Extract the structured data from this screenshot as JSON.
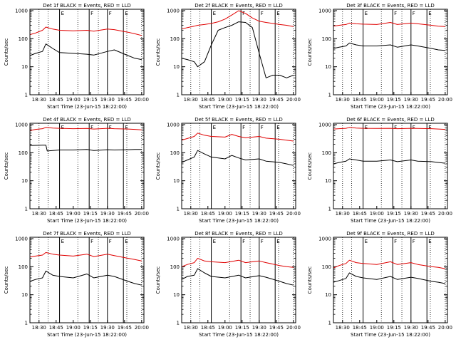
{
  "colors": {
    "events": "#000000",
    "lld": "#e00000",
    "axes": "#000000",
    "background": "#ffffff"
  },
  "shared": {
    "ylabel": "Counts/sec",
    "xlabel": "Start Time (23-Jun-15 18:22:00)",
    "xticks": [
      "18:30",
      "18:45",
      "19:00",
      "19:15",
      "19:30",
      "19:45",
      "20:00"
    ],
    "yticks": [
      "1",
      "10",
      "100",
      "1000"
    ],
    "solid_markers": [
      18.8,
      19.233,
      19.5,
      19.733
    ],
    "solid_labels": [
      "E",
      "F",
      "F",
      "E"
    ],
    "dotted_markers": [
      18.5,
      18.633,
      19.067,
      19.367,
      19.783,
      20.0
    ],
    "xlim": [
      18.367,
      20.033
    ],
    "ylim_log10": [
      0,
      3.05
    ]
  },
  "chart_data": [
    {
      "type": "line",
      "title": "Det 1f BLACK = Events, RED = LLD",
      "series": [
        {
          "name": "Events",
          "color": "#000000",
          "x": [
            18.367,
            18.45,
            18.55,
            18.6,
            18.7,
            18.8,
            19.0,
            19.2,
            19.3,
            19.5,
            19.6,
            19.8,
            19.9,
            20.0
          ],
          "values": [
            25,
            30,
            35,
            65,
            45,
            32,
            30,
            28,
            26,
            35,
            40,
            25,
            20,
            18
          ]
        },
        {
          "name": "LLD",
          "color": "#e00000",
          "x": [
            18.367,
            18.45,
            18.55,
            18.6,
            18.7,
            18.8,
            19.0,
            19.2,
            19.3,
            19.5,
            19.6,
            19.8,
            19.9,
            20.0
          ],
          "values": [
            140,
            160,
            200,
            260,
            220,
            200,
            190,
            200,
            185,
            220,
            210,
            170,
            150,
            130
          ]
        }
      ]
    },
    {
      "type": "line",
      "title": "Det 2f BLACK = Events, RED = LLD",
      "series": [
        {
          "name": "Events",
          "color": "#000000",
          "x": [
            18.367,
            18.45,
            18.55,
            18.6,
            18.7,
            18.8,
            18.9,
            19.0,
            19.1,
            19.2,
            19.3,
            19.4,
            19.5,
            19.6,
            19.7,
            19.8,
            19.9,
            20.0
          ],
          "values": [
            20,
            18,
            15,
            10,
            15,
            60,
            200,
            250,
            300,
            400,
            380,
            250,
            30,
            4,
            5,
            5,
            4,
            5
          ]
        },
        {
          "name": "LLD",
          "color": "#e00000",
          "x": [
            18.367,
            18.45,
            18.55,
            18.6,
            18.7,
            18.8,
            18.9,
            19.0,
            19.1,
            19.2,
            19.3,
            19.4,
            19.5,
            19.6,
            19.7,
            19.8,
            19.9,
            20.0
          ],
          "values": [
            220,
            250,
            280,
            300,
            320,
            350,
            400,
            500,
            700,
            1000,
            800,
            550,
            420,
            380,
            350,
            320,
            300,
            270
          ]
        }
      ]
    },
    {
      "type": "line",
      "title": "Det 3f BLACK = Events, RED = LLD",
      "series": [
        {
          "name": "Events",
          "color": "#000000",
          "x": [
            18.367,
            18.45,
            18.55,
            18.6,
            18.7,
            18.8,
            19.0,
            19.2,
            19.3,
            19.5,
            19.6,
            19.8,
            19.9,
            20.0
          ],
          "values": [
            45,
            50,
            55,
            70,
            60,
            55,
            55,
            60,
            50,
            60,
            55,
            45,
            40,
            38
          ]
        },
        {
          "name": "LLD",
          "color": "#e00000",
          "x": [
            18.367,
            18.45,
            18.55,
            18.6,
            18.7,
            18.8,
            19.0,
            19.2,
            19.3,
            19.5,
            19.6,
            19.8,
            19.9,
            20.0
          ],
          "values": [
            280,
            300,
            320,
            360,
            340,
            330,
            320,
            380,
            320,
            360,
            340,
            300,
            280,
            270
          ]
        }
      ]
    },
    {
      "type": "line",
      "title": "Det 4f BLACK = Events, RED = LLD",
      "series": [
        {
          "name": "Events",
          "color": "#000000",
          "x": [
            18.367,
            18.55,
            18.6,
            18.62,
            18.7,
            18.8,
            19.0,
            19.2,
            19.3,
            19.5,
            19.6,
            19.8,
            19.9,
            20.0
          ],
          "values": [
            180,
            185,
            185,
            115,
            120,
            125,
            125,
            130,
            120,
            128,
            125,
            128,
            130,
            130
          ]
        },
        {
          "name": "LLD",
          "color": "#e00000",
          "x": [
            18.367,
            18.45,
            18.55,
            18.6,
            18.7,
            18.8,
            19.0,
            19.2,
            19.3,
            19.5,
            19.6,
            19.8,
            19.9,
            20.0
          ],
          "values": [
            620,
            680,
            720,
            800,
            760,
            740,
            720,
            730,
            700,
            740,
            720,
            700,
            680,
            650
          ]
        }
      ]
    },
    {
      "type": "line",
      "title": "Det 5f BLACK = Events, RED = LLD",
      "series": [
        {
          "name": "Events",
          "color": "#000000",
          "x": [
            18.367,
            18.45,
            18.55,
            18.6,
            18.7,
            18.8,
            19.0,
            19.1,
            19.2,
            19.3,
            19.5,
            19.6,
            19.8,
            19.9,
            20.0
          ],
          "values": [
            45,
            55,
            70,
            120,
            90,
            70,
            60,
            80,
            65,
            55,
            60,
            50,
            45,
            40,
            35
          ]
        },
        {
          "name": "LLD",
          "color": "#e00000",
          "x": [
            18.367,
            18.45,
            18.55,
            18.6,
            18.7,
            18.8,
            19.0,
            19.1,
            19.2,
            19.3,
            19.5,
            19.6,
            19.8,
            19.9,
            20.0
          ],
          "values": [
            280,
            320,
            380,
            500,
            420,
            380,
            360,
            450,
            380,
            340,
            380,
            330,
            300,
            280,
            260
          ]
        }
      ]
    },
    {
      "type": "line",
      "title": "Det 6f BLACK = Events, RED = LLD",
      "series": [
        {
          "name": "Events",
          "color": "#000000",
          "x": [
            18.367,
            18.45,
            18.55,
            18.6,
            18.7,
            18.8,
            19.0,
            19.2,
            19.3,
            19.5,
            19.6,
            19.8,
            19.9,
            20.0
          ],
          "values": [
            40,
            45,
            50,
            60,
            55,
            50,
            50,
            55,
            48,
            55,
            50,
            48,
            45,
            42
          ]
        },
        {
          "name": "LLD",
          "color": "#e00000",
          "x": [
            18.367,
            18.45,
            18.55,
            18.6,
            18.7,
            18.8,
            19.0,
            19.2,
            19.3,
            19.5,
            19.6,
            19.8,
            19.9,
            20.0
          ],
          "values": [
            700,
            720,
            740,
            800,
            760,
            740,
            730,
            740,
            720,
            740,
            730,
            720,
            700,
            680
          ]
        }
      ]
    },
    {
      "type": "line",
      "title": "Det 7f BLACK = Events, RED = LLD",
      "series": [
        {
          "name": "Events",
          "color": "#000000",
          "x": [
            18.367,
            18.45,
            18.55,
            18.6,
            18.7,
            18.8,
            19.0,
            19.2,
            19.3,
            19.5,
            19.6,
            19.8,
            19.9,
            20.0
          ],
          "values": [
            30,
            35,
            40,
            70,
            50,
            45,
            40,
            55,
            40,
            50,
            45,
            30,
            25,
            22
          ]
        },
        {
          "name": "LLD",
          "color": "#e00000",
          "x": [
            18.367,
            18.45,
            18.55,
            18.6,
            18.7,
            18.8,
            19.0,
            19.2,
            19.3,
            19.5,
            19.6,
            19.8,
            19.9,
            20.0
          ],
          "values": [
            220,
            240,
            260,
            320,
            280,
            260,
            240,
            280,
            230,
            280,
            250,
            200,
            180,
            160
          ]
        }
      ]
    },
    {
      "type": "line",
      "title": "Det 8f BLACK = Events, RED = LLD",
      "series": [
        {
          "name": "Events",
          "color": "#000000",
          "x": [
            18.367,
            18.45,
            18.55,
            18.6,
            18.7,
            18.8,
            19.0,
            19.2,
            19.3,
            19.5,
            19.6,
            19.8,
            19.9,
            20.0
          ],
          "values": [
            35,
            45,
            50,
            85,
            60,
            45,
            40,
            50,
            40,
            48,
            42,
            30,
            25,
            22
          ]
        },
        {
          "name": "LLD",
          "color": "#e00000",
          "x": [
            18.367,
            18.45,
            18.55,
            18.6,
            18.7,
            18.8,
            19.0,
            19.2,
            19.3,
            19.5,
            19.6,
            19.8,
            19.9,
            20.0
          ],
          "values": [
            100,
            120,
            140,
            200,
            160,
            150,
            140,
            170,
            140,
            160,
            140,
            110,
            100,
            95
          ]
        }
      ]
    },
    {
      "type": "line",
      "title": "Det 9f BLACK = Events, RED = LLD",
      "series": [
        {
          "name": "Events",
          "color": "#000000",
          "x": [
            18.367,
            18.45,
            18.55,
            18.6,
            18.7,
            18.8,
            19.0,
            19.2,
            19.3,
            19.5,
            19.6,
            19.8,
            19.9,
            20.0
          ],
          "values": [
            28,
            32,
            38,
            60,
            45,
            40,
            35,
            45,
            35,
            42,
            38,
            30,
            28,
            25
          ]
        },
        {
          "name": "LLD",
          "color": "#e00000",
          "x": [
            18.367,
            18.45,
            18.55,
            18.6,
            18.7,
            18.8,
            19.0,
            19.2,
            19.3,
            19.5,
            19.6,
            19.8,
            19.9,
            20.0
          ],
          "values": [
            90,
            110,
            130,
            170,
            140,
            130,
            120,
            150,
            120,
            140,
            120,
            100,
            95,
            85
          ]
        }
      ]
    }
  ]
}
